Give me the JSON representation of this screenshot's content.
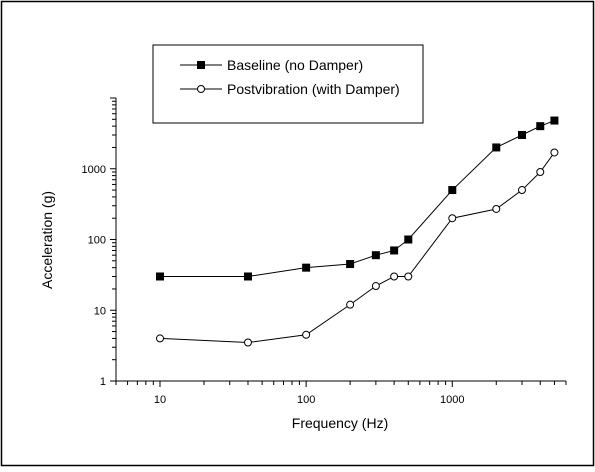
{
  "chart_data": {
    "type": "line",
    "title": "",
    "xlabel": "Frequency (Hz)",
    "ylabel": "Acceleration (g)",
    "xscale": "log",
    "yscale": "log",
    "xlim": [
      5,
      6000
    ],
    "ylim": [
      1,
      10000
    ],
    "xticks": [
      {
        "value": 10,
        "label": "10"
      },
      {
        "value": 100,
        "label": "100"
      },
      {
        "value": 1000,
        "label": "1000"
      }
    ],
    "yticks": [
      {
        "value": 1,
        "label": "1"
      },
      {
        "value": 10,
        "label": "10"
      },
      {
        "value": 100,
        "label": "100"
      },
      {
        "value": 1000,
        "label": "1000"
      }
    ],
    "grid": false,
    "legend": "top-left",
    "series": [
      {
        "name": "Baseline (no Damper)",
        "marker": "filled-square",
        "x": [
          10,
          40,
          100,
          200,
          300,
          400,
          500,
          1000,
          2000,
          3000,
          4000,
          5000
        ],
        "y": [
          30,
          30,
          40,
          45,
          60,
          70,
          100,
          500,
          2000,
          3000,
          4000,
          4800
        ]
      },
      {
        "name": "Postvibration (with Damper)",
        "marker": "open-circle",
        "x": [
          10,
          40,
          100,
          200,
          300,
          400,
          500,
          1000,
          2000,
          3000,
          4000,
          5000
        ],
        "y": [
          4,
          3.5,
          4.5,
          12,
          22,
          30,
          30,
          200,
          270,
          500,
          900,
          1700
        ]
      }
    ]
  }
}
